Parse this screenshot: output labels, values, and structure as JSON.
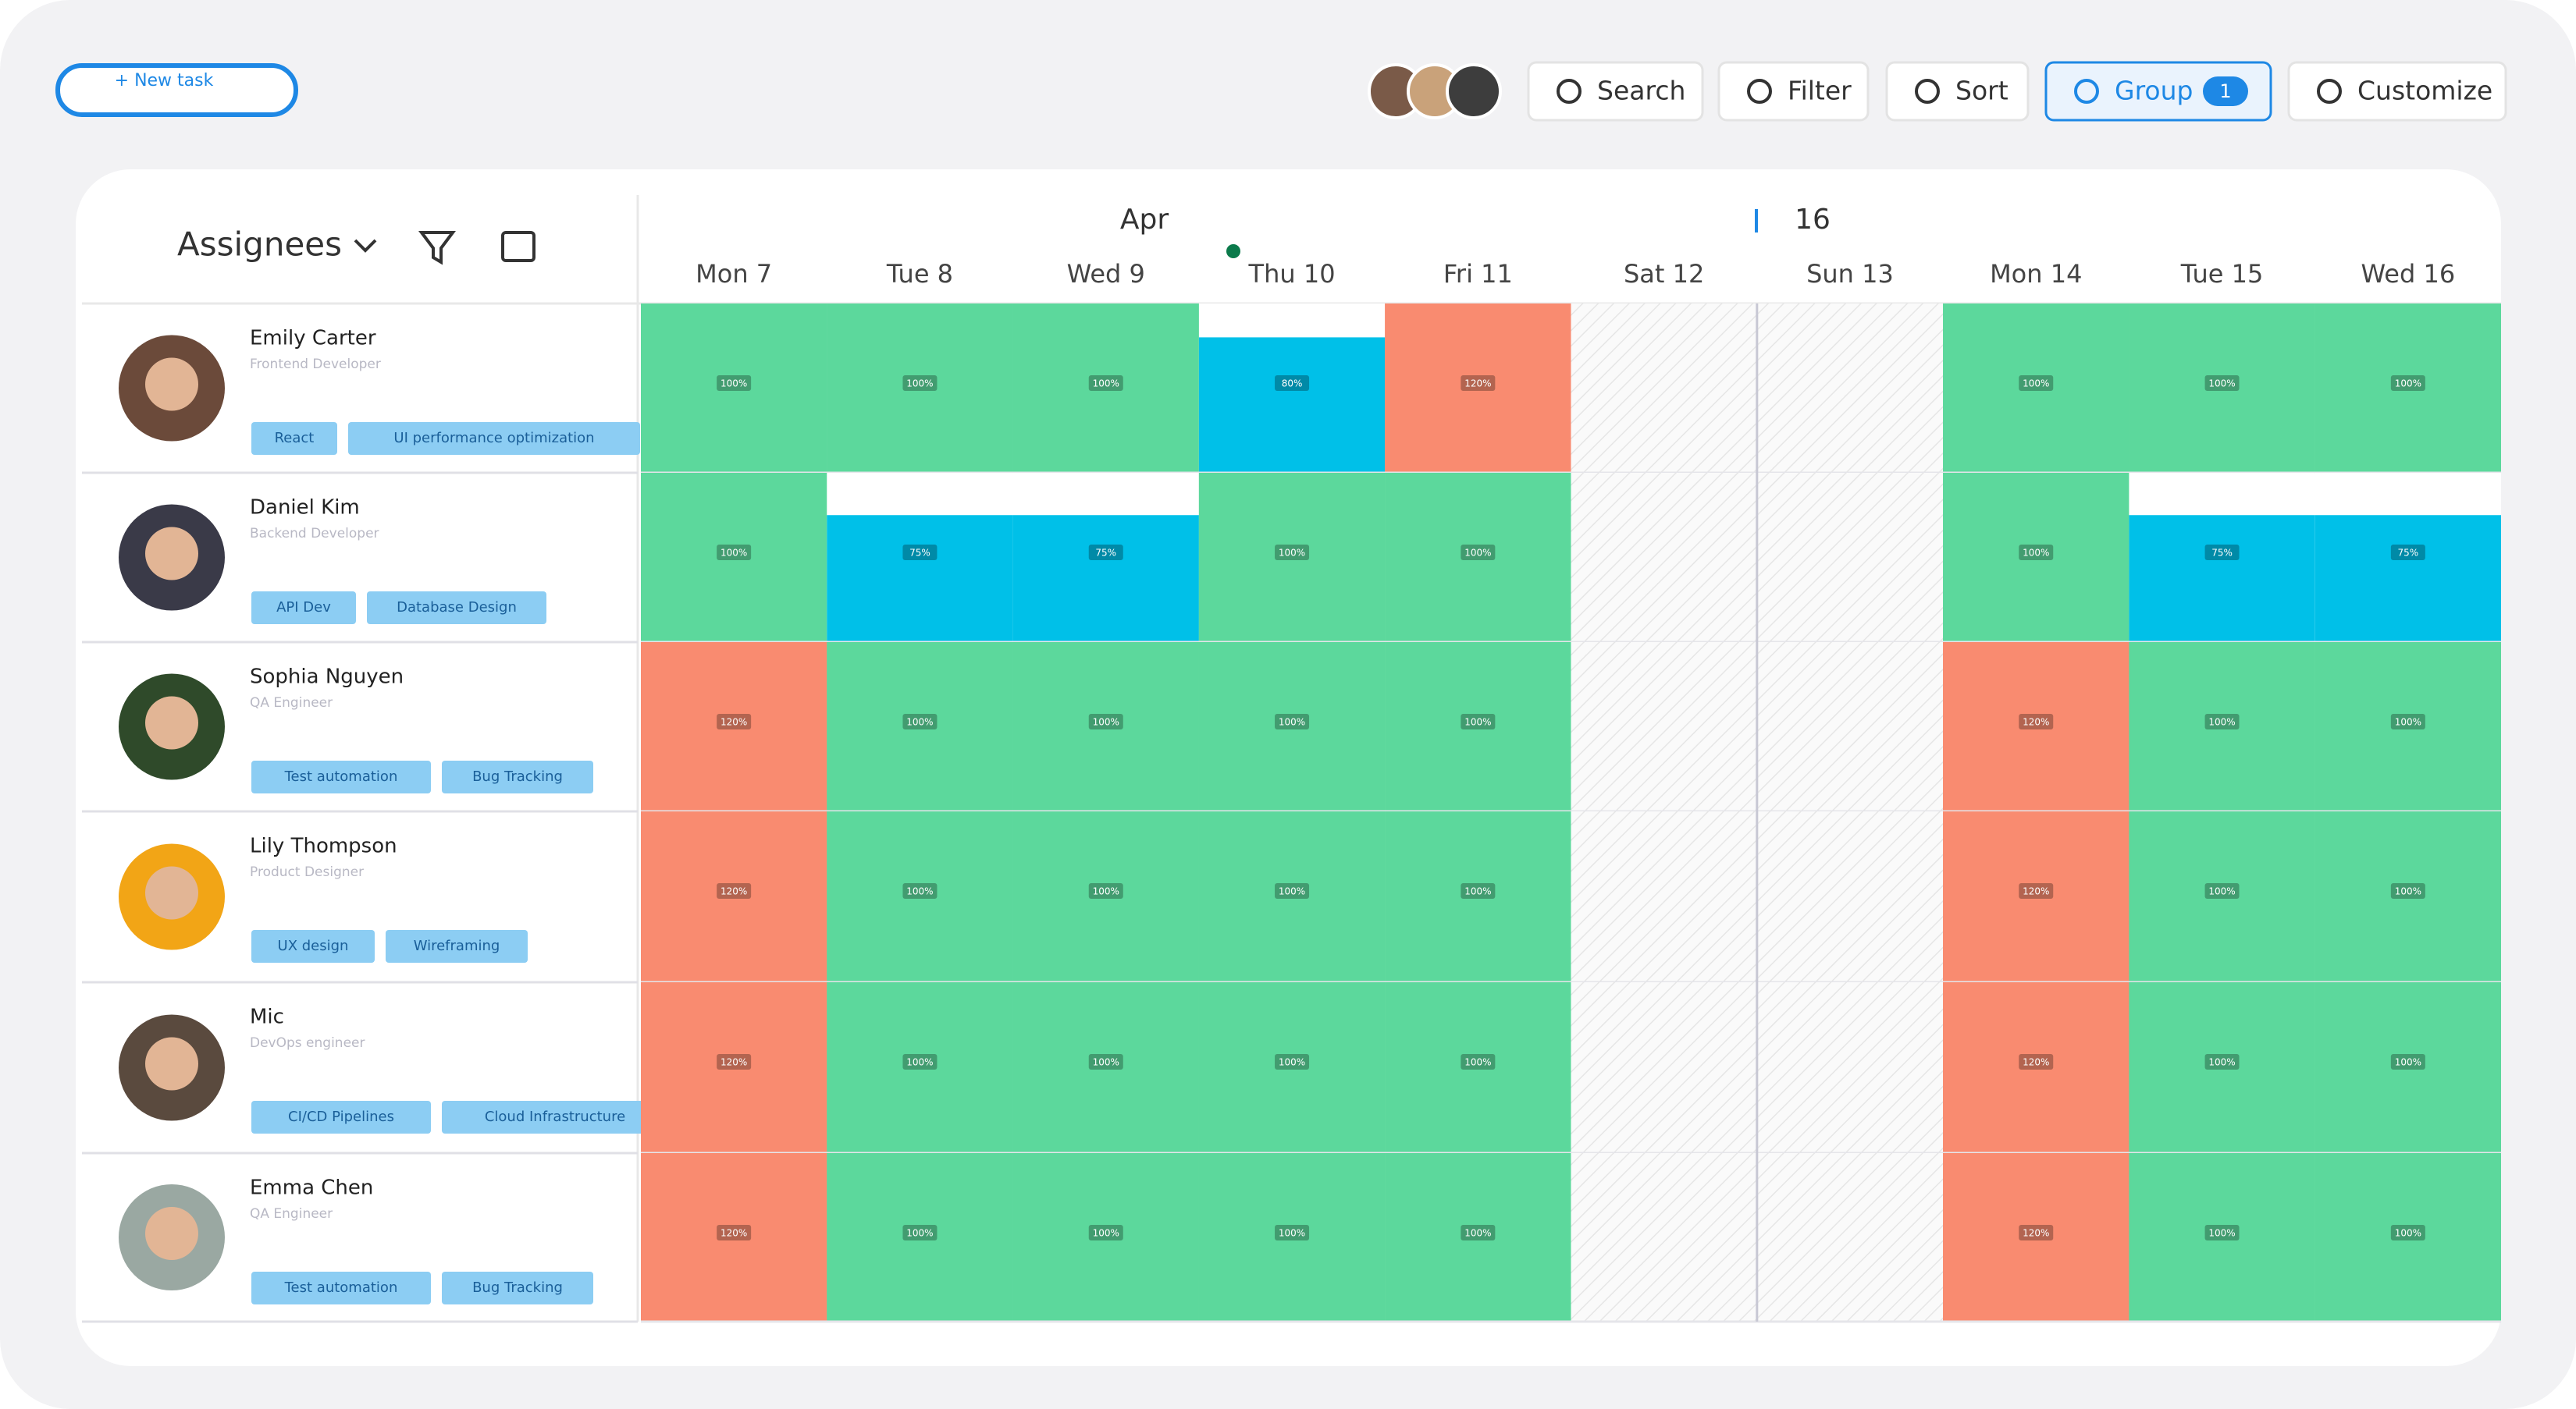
{
  "toolbar": {
    "new_task": "+ New task",
    "buttons": [
      "Search",
      "Filter",
      "Sort",
      "Group",
      "Customize"
    ],
    "group_count": "1"
  },
  "header": {
    "column": "Assignees",
    "month": "Apr",
    "week": "16",
    "days": [
      "Mon 7",
      "Tue 8",
      "Wed 9",
      "Thu 10",
      "Fri 11",
      "Sat 12",
      "Sun 13",
      "Mon 14",
      "Tue 15",
      "Wed 16"
    ]
  },
  "rows": [
    {
      "name": "Emily Carter",
      "role": "Frontend Developer",
      "skills": [
        "React",
        "UI performance optimization"
      ],
      "cells": [
        {
          "value": 100,
          "label": "100%"
        },
        {
          "value": 100,
          "label": "100%"
        },
        {
          "value": 100,
          "label": "100%"
        },
        {
          "value": 80,
          "label": "80%"
        },
        {
          "value": 120,
          "label": "120%"
        },
        null,
        null,
        {
          "value": 100,
          "label": "100%"
        },
        {
          "value": 100,
          "label": "100%"
        },
        {
          "value": 100,
          "label": "100%"
        }
      ]
    },
    {
      "name": "Daniel Kim",
      "role": "Backend Developer",
      "skills": [
        "API Dev",
        "Database Design"
      ],
      "cells": [
        {
          "value": 100,
          "label": "100%"
        },
        {
          "value": 75,
          "label": "75%"
        },
        {
          "value": 75,
          "label": "75%"
        },
        {
          "value": 100,
          "label": "100%"
        },
        {
          "value": 100,
          "label": "100%"
        },
        null,
        null,
        {
          "value": 100,
          "label": "100%"
        },
        {
          "value": 75,
          "label": "75%"
        },
        {
          "value": 75,
          "label": "75%"
        }
      ]
    },
    {
      "name": "Sophia Nguyen",
      "role": "QA Engineer",
      "skills": [
        "Test automation",
        "Bug Tracking"
      ],
      "cells": [
        {
          "value": 120,
          "label": "120%"
        },
        {
          "value": 100,
          "label": "100%"
        },
        {
          "value": 100,
          "label": "100%"
        },
        {
          "value": 100,
          "label": "100%"
        },
        {
          "value": 100,
          "label": "100%"
        },
        null,
        null,
        {
          "value": 120,
          "label": "120%"
        },
        {
          "value": 100,
          "label": "100%"
        },
        {
          "value": 100,
          "label": "100%"
        }
      ]
    },
    {
      "name": "Lily Thompson",
      "role": "Product Designer",
      "skills": [
        "UX design",
        "Wireframing"
      ],
      "cells": [
        {
          "value": 120,
          "label": "120%"
        },
        {
          "value": 100,
          "label": "100%"
        },
        {
          "value": 100,
          "label": "100%"
        },
        {
          "value": 100,
          "label": "100%"
        },
        {
          "value": 100,
          "label": "100%"
        },
        null,
        null,
        {
          "value": 120,
          "label": "120%"
        },
        {
          "value": 100,
          "label": "100%"
        },
        {
          "value": 100,
          "label": "100%"
        }
      ]
    },
    {
      "name": "Mic",
      "role": "DevOps engineer",
      "skills": [
        "CI/CD Pipelines",
        "Cloud Infrastructure"
      ],
      "cells": [
        {
          "value": 120,
          "label": "120%"
        },
        {
          "value": 100,
          "label": "100%"
        },
        {
          "value": 100,
          "label": "100%"
        },
        {
          "value": 100,
          "label": "100%"
        },
        {
          "value": 100,
          "label": "100%"
        },
        null,
        null,
        {
          "value": 120,
          "label": "120%"
        },
        {
          "value": 100,
          "label": "100%"
        },
        {
          "value": 100,
          "label": "100%"
        }
      ]
    },
    {
      "name": "Emma Chen",
      "role": "QA Engineer",
      "skills": [
        "Test automation",
        "Bug Tracking"
      ],
      "cells": [
        {
          "value": 120,
          "label": "120%"
        },
        {
          "value": 100,
          "label": "100%"
        },
        {
          "value": 100,
          "label": "100%"
        },
        {
          "value": 100,
          "label": "100%"
        },
        {
          "value": 100,
          "label": "100%"
        },
        null,
        null,
        {
          "value": 120,
          "label": "120%"
        },
        {
          "value": 100,
          "label": "100%"
        },
        {
          "value": 100,
          "label": "100%"
        }
      ]
    }
  ]
}
